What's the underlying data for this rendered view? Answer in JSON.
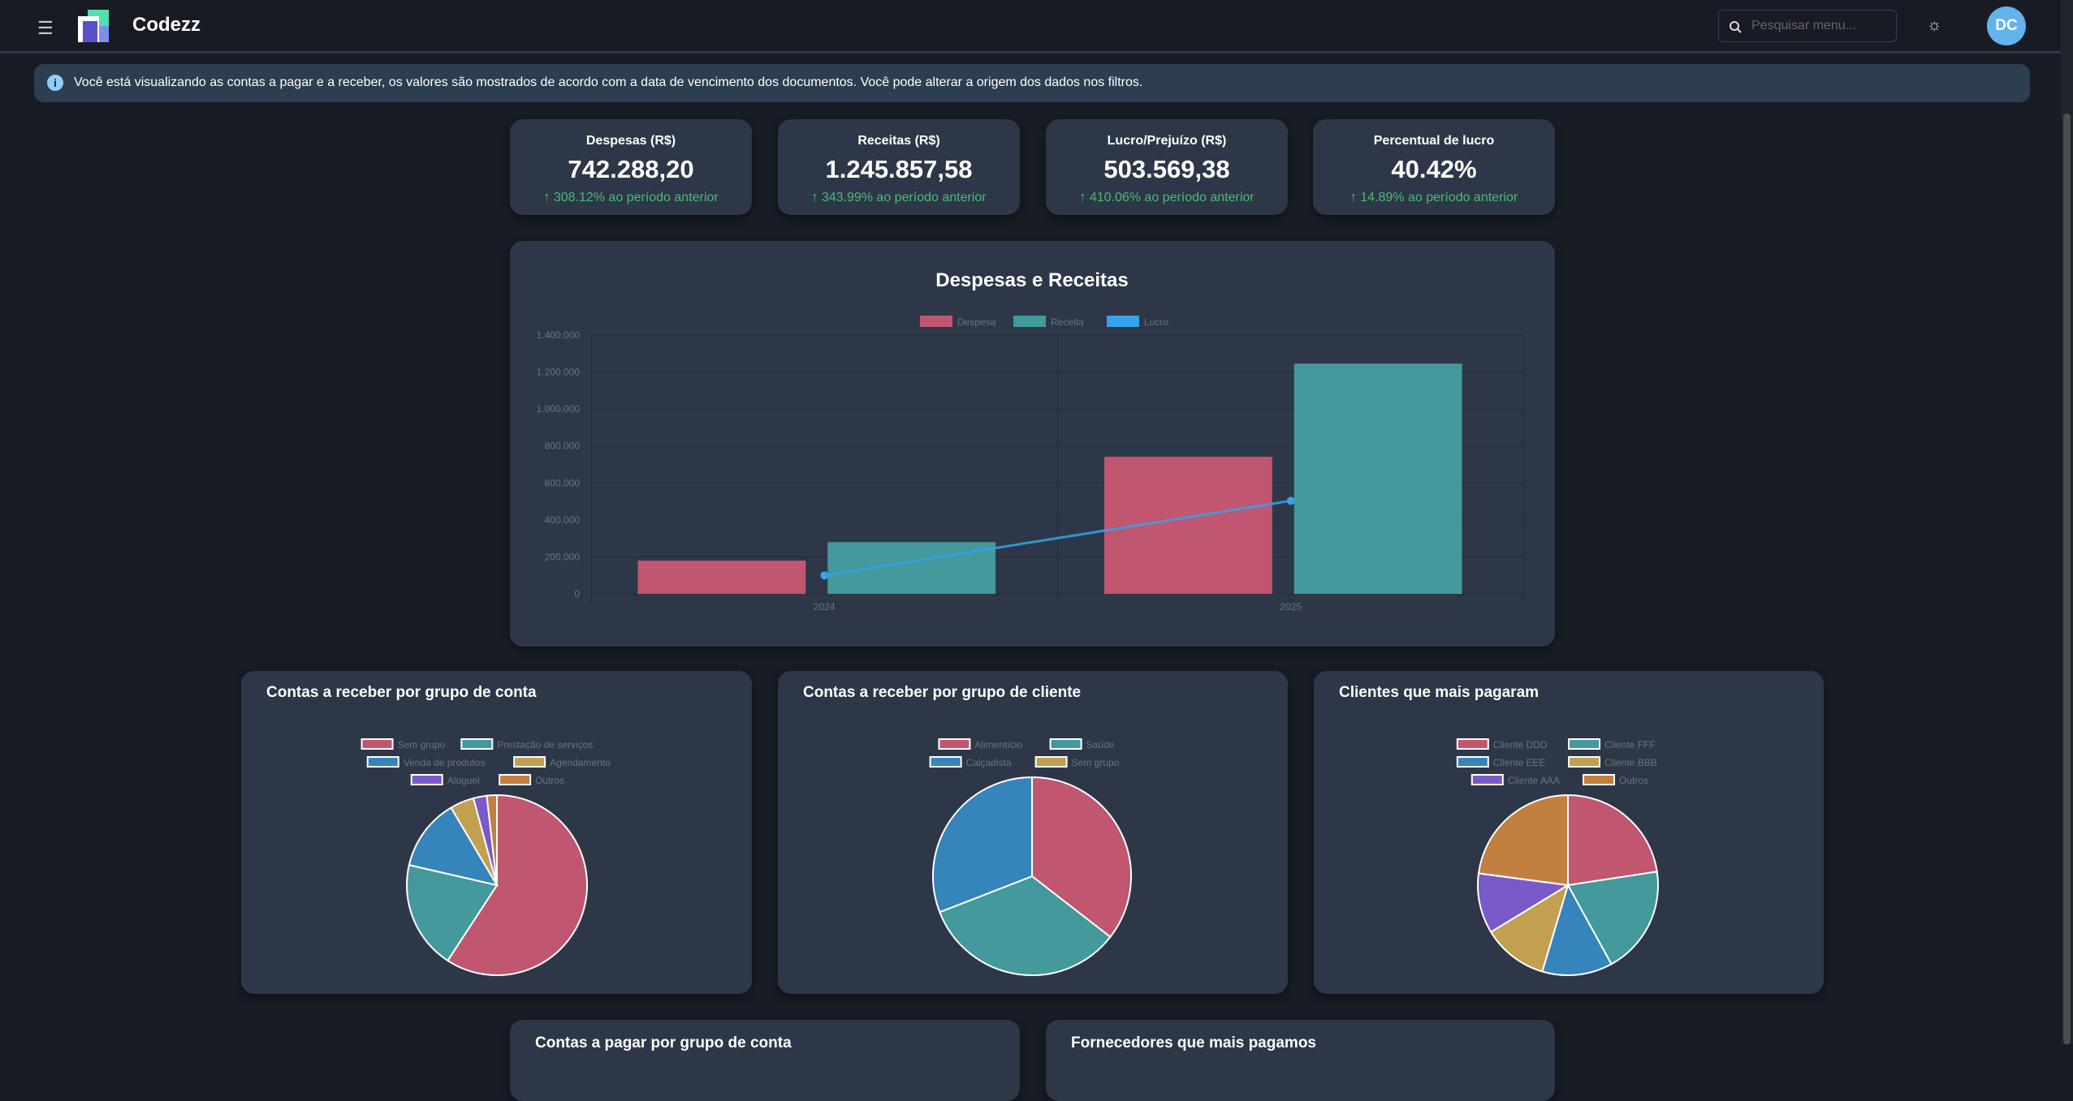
{
  "header": {
    "brand": "Codezz",
    "search_placeholder": "Pesquisar menu...",
    "avatar_initials": "DC",
    "icons": {
      "menu": "hamburger-icon",
      "search": "search-icon",
      "theme": "sun-icon"
    }
  },
  "info": {
    "icon": "info-icon",
    "text": "Você está visualizando as contas a pagar e a receber, os valores são mostrados de acordo com a data de vencimento dos documentos. Você pode alterar a origem dos dados nos filtros."
  },
  "kpis": [
    {
      "label": "Despesas (R$)",
      "value": "742.288,20",
      "change": "308.12% ao período anterior"
    },
    {
      "label": "Receitas (R$)",
      "value": "1.245.857,58",
      "change": "343.99% ao período anterior"
    },
    {
      "label": "Lucro/Prejuízo (R$)",
      "value": "503.569,38",
      "change": "410.06% ao período anterior"
    },
    {
      "label": "Percentual de lucro",
      "value": "40.42%",
      "change": "14.89% ao período anterior"
    }
  ],
  "colors": {
    "despesa": "#c0566f",
    "receita": "#43999b",
    "lucro": "#36a2eb",
    "blue": "#3584bb",
    "gold": "#c2a050",
    "purple": "#7a59c8",
    "orange": "#c28040",
    "positive": "#48bb78"
  },
  "chart_data": [
    {
      "type": "bar",
      "title": "Despesas e Receitas",
      "categories": [
        "2024",
        "2025"
      ],
      "ylim": [
        0,
        1400000
      ],
      "yticks": [
        "0",
        "200.000",
        "400.000",
        "600.000",
        "800.000",
        "1.000.000",
        "1.200.000",
        "1.400.000"
      ],
      "legend": "top",
      "series": [
        {
          "name": "Despesa",
          "type": "bar",
          "values": [
            180000,
            742288
          ]
        },
        {
          "name": "Receita",
          "type": "bar",
          "values": [
            280000,
            1245858
          ]
        },
        {
          "name": "Lucro",
          "type": "line",
          "values": [
            100000,
            503569
          ]
        }
      ]
    },
    {
      "type": "pie",
      "title": "Contas a receber por grupo de conta",
      "labels": [
        "Sem grupo",
        "Prestação de serviços",
        "Venda de produtos",
        "Agendamento",
        "Aluguel",
        "Outros"
      ],
      "values": [
        59.2,
        19.4,
        12.9,
        4.3,
        2.4,
        1.8
      ]
    },
    {
      "type": "pie",
      "title": "Contas a receber por grupo de cliente",
      "labels": [
        "Alimentício",
        "Saúde",
        "Calçadista",
        "Sem grupo"
      ],
      "values": [
        35.5,
        33.6,
        30.9,
        0
      ]
    },
    {
      "type": "pie",
      "title": "Clientes que mais pagaram",
      "labels": [
        "Cliente DDD",
        "Cliente FFF",
        "Cliente EEE",
        "Cliente BBB",
        "Cliente AAA",
        "Outros"
      ],
      "values": [
        22.6,
        19.4,
        12.6,
        11.7,
        10.8,
        22.9
      ]
    }
  ],
  "bottom_cards": [
    {
      "title": "Contas a pagar por grupo de conta"
    },
    {
      "title": "Fornecedores que mais pagamos"
    }
  ]
}
